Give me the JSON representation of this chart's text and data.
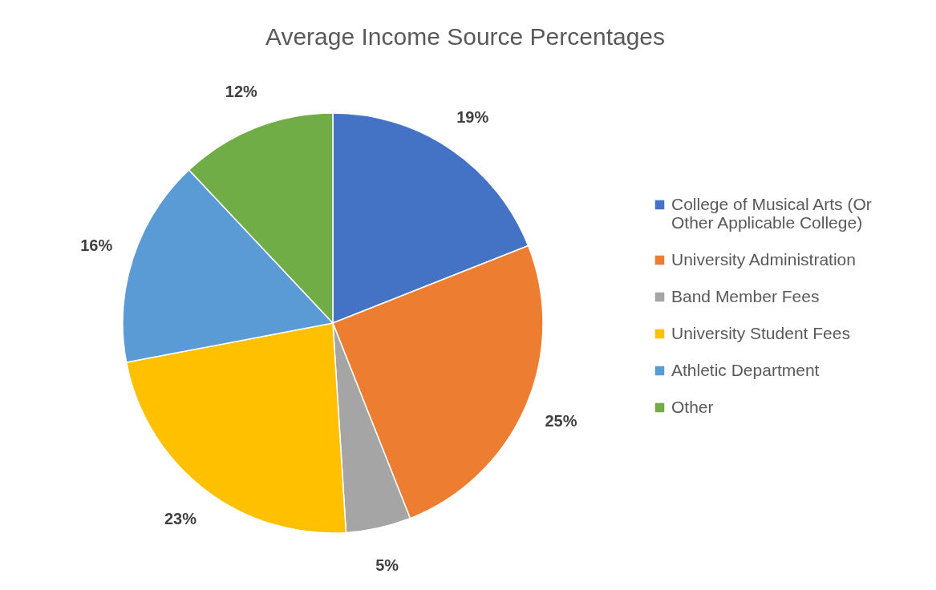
{
  "chart_data": {
    "type": "pie",
    "title": "Average Income Source Percentages",
    "categories": [
      "College of Musical Arts (Or Other Applicable College)",
      "University Administration",
      "Band Member Fees",
      "University Student Fees",
      "Athletic Department",
      "Other"
    ],
    "values": [
      19,
      25,
      5,
      23,
      16,
      12
    ],
    "colors": [
      "#4472c4",
      "#ed7d31",
      "#a5a5a5",
      "#ffc000",
      "#5b9bd5",
      "#70ad47"
    ],
    "value_labels": [
      "19%",
      "25%",
      "5%",
      "23%",
      "16%",
      "12%"
    ],
    "legend": "right"
  }
}
